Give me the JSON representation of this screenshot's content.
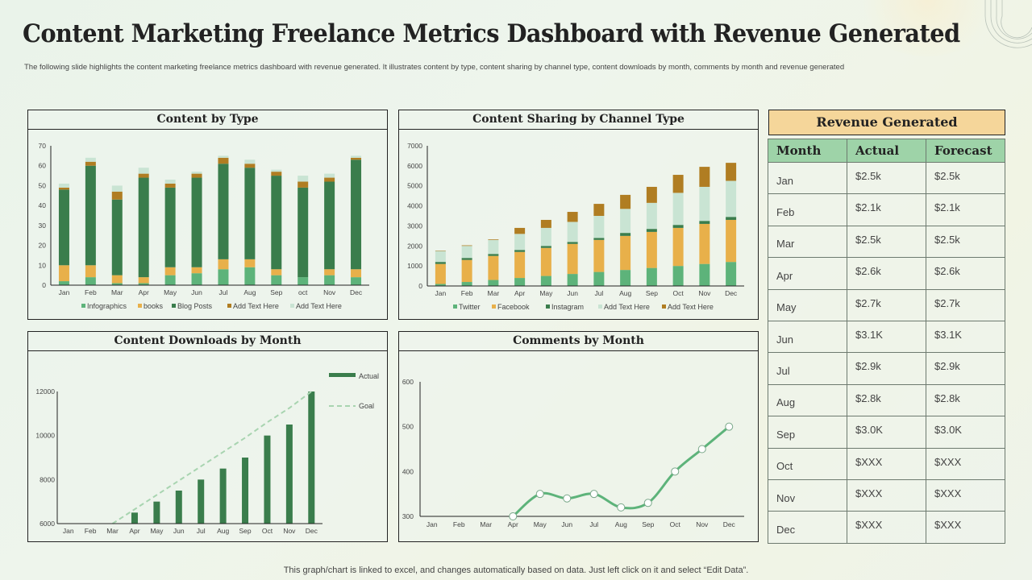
{
  "header": {
    "title": "Content Marketing Freelance Metrics Dashboard with Revenue Generated",
    "subtitle": "The following slide highlights the content marketing  freelance metrics dashboard with revenue generated. It illustrates content by type, content sharing by channel type, content downloads by month, comments  by month  and revenue generated"
  },
  "footer": {
    "note": "This graph/chart is linked to excel,  and changes automatically based on data. Just left click on it and select “Edit Data”."
  },
  "colors": {
    "light_green": "#5db37a",
    "gold": "#e8b04a",
    "dark_green": "#3a7d4c",
    "brown": "#b07d22",
    "pale_green": "#c9e4d3",
    "revenue_header": "#f5d69a",
    "table_header": "#9ed3a8"
  },
  "chart_data": [
    {
      "id": "content_by_type",
      "type": "bar",
      "stacked": true,
      "title": "Content by Type",
      "categories": [
        "Jan",
        "Feb",
        "Mar",
        "Apr",
        "May",
        "Jun",
        "Jul",
        "Aug",
        "Sep",
        "oct",
        "Nov",
        "Dec"
      ],
      "ylim": [
        0,
        70
      ],
      "yticks": [
        0,
        10,
        20,
        30,
        40,
        50,
        60,
        70
      ],
      "legend": "bottom",
      "grid": false,
      "series": [
        {
          "name": "Infographics",
          "color": "#5db37a",
          "values": [
            2,
            4,
            1,
            1,
            5,
            6,
            8,
            9,
            5,
            4,
            5,
            4
          ]
        },
        {
          "name": "books",
          "color": "#e8b04a",
          "values": [
            8,
            6,
            4,
            3,
            4,
            3,
            5,
            4,
            3,
            0,
            3,
            4
          ]
        },
        {
          "name": "Blog Posts",
          "color": "#3a7d4c",
          "values": [
            38,
            50,
            38,
            50,
            40,
            45,
            48,
            46,
            47,
            45,
            44,
            55
          ]
        },
        {
          "name": "Add Text Here",
          "color": "#b07d22",
          "values": [
            1,
            2,
            4,
            2,
            2,
            2,
            3,
            2,
            2,
            3,
            2,
            1
          ]
        },
        {
          "name": "Add Text Here",
          "color": "#c9e4d3",
          "values": [
            2,
            2,
            3,
            3,
            2,
            1,
            1,
            2,
            1,
            3,
            2,
            1
          ]
        }
      ]
    },
    {
      "id": "content_sharing",
      "type": "bar",
      "stacked": true,
      "title": "Content Sharing by Channel Type",
      "categories": [
        "Jan",
        "Feb",
        "Mar",
        "Apr",
        "May",
        "Jun",
        "Jul",
        "Aug",
        "Sep",
        "Oct",
        "Nov",
        "Dec"
      ],
      "ylim": [
        0,
        7000
      ],
      "yticks": [
        0,
        1000,
        2000,
        3000,
        4000,
        5000,
        6000,
        7000
      ],
      "legend": "bottom",
      "grid": false,
      "series": [
        {
          "name": "Twitter",
          "color": "#5db37a",
          "values": [
            100,
            200,
            300,
            400,
            500,
            600,
            700,
            800,
            900,
            1000,
            1100,
            1200
          ]
        },
        {
          "name": "Facebook",
          "color": "#e8b04a",
          "values": [
            1000,
            1100,
            1200,
            1300,
            1400,
            1500,
            1600,
            1700,
            1800,
            1900,
            2000,
            2100
          ]
        },
        {
          "name": "Instagram",
          "color": "#3a7d4c",
          "values": [
            100,
            100,
            100,
            100,
            100,
            100,
            100,
            150,
            150,
            150,
            150,
            150
          ]
        },
        {
          "name": "Add Text Here",
          "color": "#c9e4d3",
          "values": [
            550,
            600,
            700,
            800,
            900,
            1000,
            1100,
            1200,
            1300,
            1600,
            1700,
            1800
          ]
        },
        {
          "name": "Add Text Here",
          "color": "#b07d22",
          "values": [
            20,
            30,
            30,
            300,
            400,
            500,
            600,
            700,
            800,
            900,
            1000,
            900
          ]
        }
      ]
    },
    {
      "id": "content_downloads",
      "type": "bar",
      "title": "Content Downloads  by Month",
      "categories": [
        "Jan",
        "Feb",
        "Mar",
        "Apr",
        "May",
        "Jun",
        "Jul",
        "Aug",
        "Sep",
        "Oct",
        "Nov",
        "Dec"
      ],
      "ylim": [
        6000,
        12000
      ],
      "yticks": [
        6000,
        8000,
        10000,
        12000
      ],
      "legend": "top-right",
      "grid": false,
      "series": [
        {
          "name": "Actual",
          "kind": "bar",
          "color": "#3a7d4c",
          "values": [
            null,
            null,
            null,
            6500,
            7000,
            7500,
            8000,
            8500,
            9000,
            10000,
            10500,
            12000
          ]
        },
        {
          "name": "Goal",
          "kind": "dashed-line",
          "color": "#a8d4b0",
          "values": [
            null,
            null,
            6000,
            6650,
            7300,
            7950,
            8600,
            9250,
            9900,
            10600,
            11250,
            12000
          ]
        }
      ]
    },
    {
      "id": "comments_by_month",
      "type": "line",
      "title": "Comments by Month",
      "categories": [
        "Jan",
        "Feb",
        "Mar",
        "Apr",
        "May",
        "Jun",
        "Jul",
        "Aug",
        "Sep",
        "Oct",
        "Nov",
        "Dec"
      ],
      "ylim": [
        300,
        600
      ],
      "yticks": [
        300,
        400,
        500,
        600
      ],
      "legend": "none",
      "grid": false,
      "series": [
        {
          "name": "Comments",
          "color": "#5db37a",
          "values": [
            null,
            null,
            null,
            300,
            350,
            340,
            350,
            320,
            330,
            400,
            450,
            500
          ]
        }
      ]
    }
  ],
  "revenue": {
    "title": "Revenue Generated",
    "columns": [
      "Month",
      "Actual",
      "Forecast"
    ],
    "rows": [
      [
        "Jan",
        "$2.5k",
        "$2.5k"
      ],
      [
        "Feb",
        "$2.1k",
        "$2.1k"
      ],
      [
        "Mar",
        "$2.5k",
        "$2.5k"
      ],
      [
        "Apr",
        "$2.6k",
        "$2.6k"
      ],
      [
        "May",
        "$2.7k",
        "$2.7k"
      ],
      [
        "Jun",
        "$3.1K",
        "$3.1K"
      ],
      [
        "Jul",
        "$2.9k",
        "$2.9k"
      ],
      [
        "Aug",
        "$2.8k",
        "$2.8k"
      ],
      [
        "Sep",
        "$3.0K",
        "$3.0K"
      ],
      [
        "Oct",
        "$XXX",
        "$XXX"
      ],
      [
        "Nov",
        "$XXX",
        "$XXX"
      ],
      [
        "Dec",
        "$XXX",
        "$XXX"
      ]
    ]
  }
}
